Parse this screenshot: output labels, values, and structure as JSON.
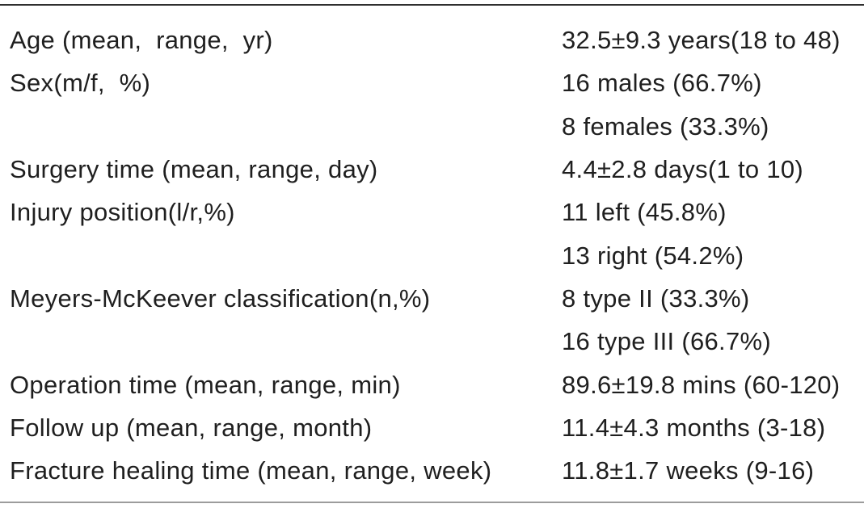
{
  "colors": {
    "background": "#ffffff",
    "text": "#1f1f1f",
    "top_rule": "#2f2f2f",
    "bottom_rule": "#9c9c9c"
  },
  "table": {
    "columns": [
      "parameter",
      "value"
    ],
    "rows": [
      {
        "parameter": "Age (mean,  range,  yr)",
        "value": "32.5±9.3 years(18 to 48)"
      },
      {
        "parameter": "Sex(m/f,  %)",
        "value": "16 males (66.7%)"
      },
      {
        "parameter": "",
        "value": "8 females (33.3%)"
      },
      {
        "parameter": "Surgery time (mean, range, day)",
        "value": "4.4±2.8 days(1 to 10)"
      },
      {
        "parameter": "Injury position(l/r,%)",
        "value": "11 left (45.8%)"
      },
      {
        "parameter": "",
        "value": "13 right (54.2%)"
      },
      {
        "parameter": "Meyers-McKeever classification(n,%)",
        "value": "8 type II (33.3%)"
      },
      {
        "parameter": "",
        "value": "16 type III (66.7%)"
      },
      {
        "parameter": "Operation time (mean, range, min)",
        "value": "89.6±19.8 mins (60-120)"
      },
      {
        "parameter": "Follow up (mean, range, month)",
        "value": "11.4±4.3 months (3-18)"
      },
      {
        "parameter": "Fracture healing time (mean, range, week)",
        "value": "11.8±1.7 weeks (9-16)"
      }
    ]
  }
}
